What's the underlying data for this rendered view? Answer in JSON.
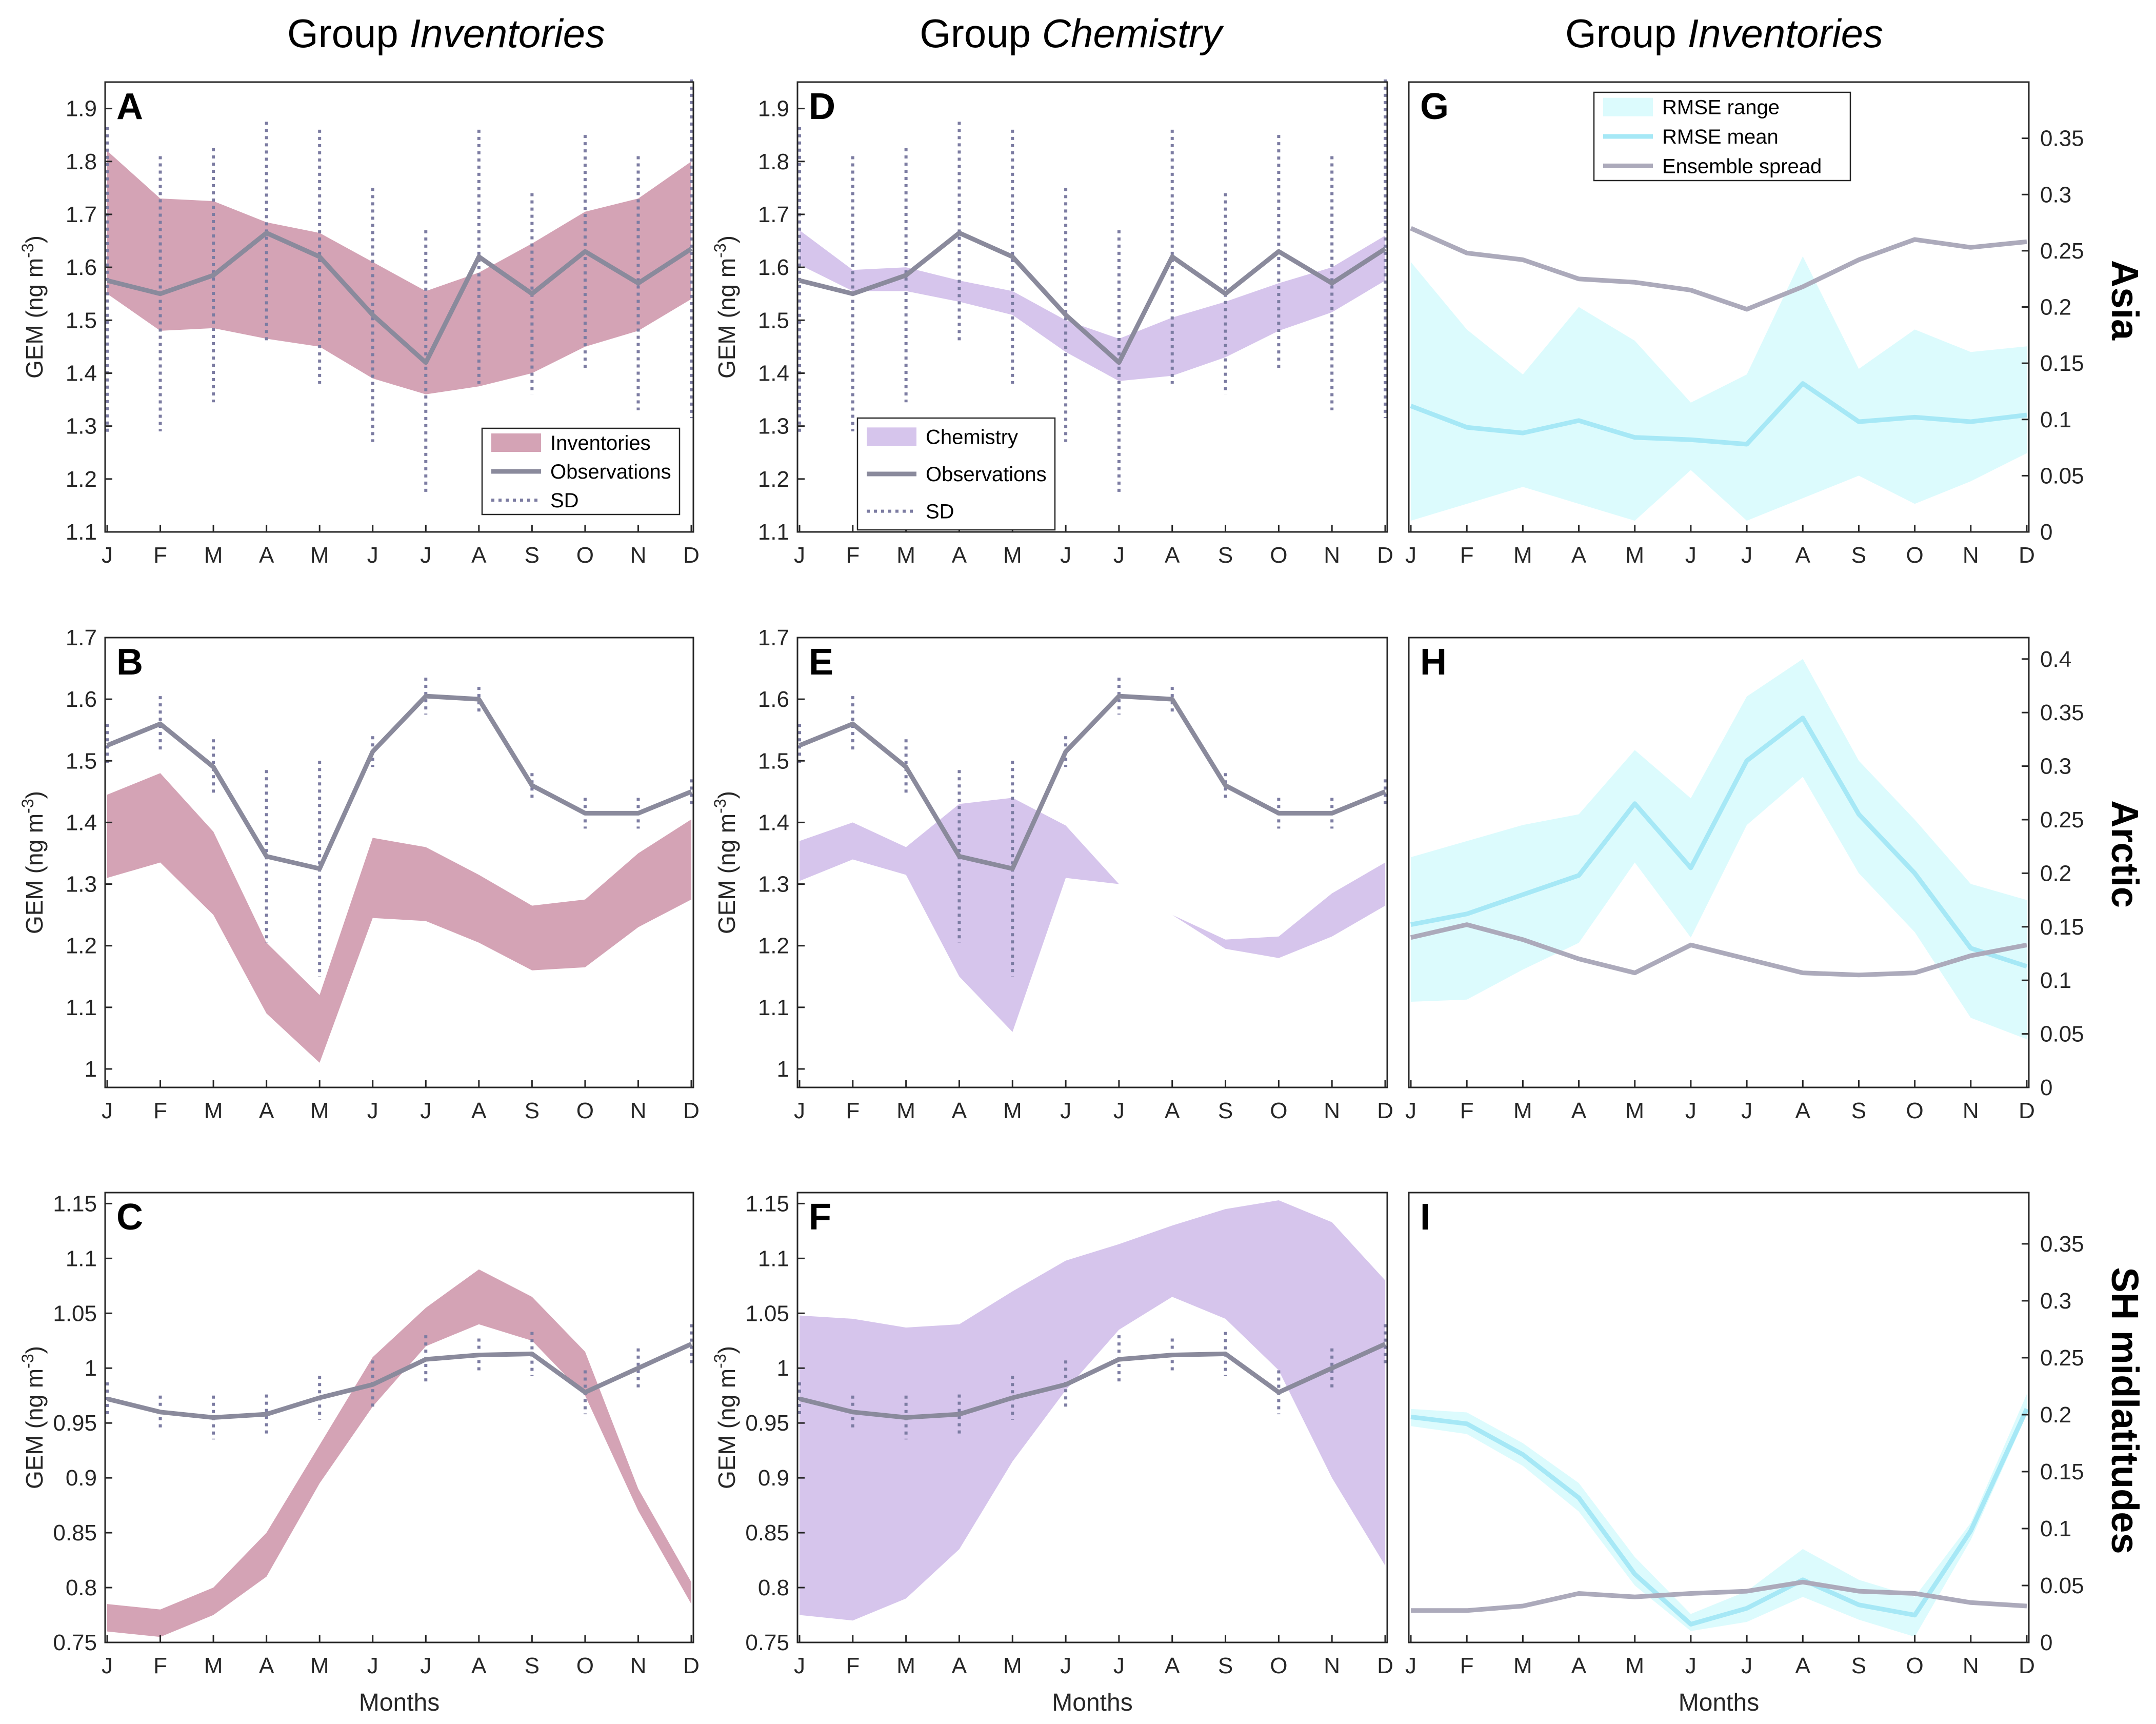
{
  "column_headers": [
    {
      "prefix": "Group ",
      "name": "Inventories"
    },
    {
      "prefix": "Group ",
      "name": "Chemistry"
    },
    {
      "prefix": "Group ",
      "name": "Inventories"
    }
  ],
  "row_labels": [
    "Asia",
    "Arctic",
    "SH midlatitudes"
  ],
  "months": [
    "J",
    "F",
    "M",
    "A",
    "M",
    "J",
    "J",
    "A",
    "S",
    "O",
    "N",
    "D"
  ],
  "xlabel": "Months",
  "ylabel": "GEM (ng m",
  "ylabel_sup": "-3",
  "ylabel_end": ")",
  "colors": {
    "inventories": "#d4a3b5",
    "chemistry": "#d6c5ec",
    "observations": "#8a8a9c",
    "sd": "#7c7ca2",
    "rmse_range": "#dcfbfd",
    "rmse_mean": "#a6e8f6",
    "ensemble_spread": "#acaabb"
  },
  "legends": {
    "inventories": [
      "Inventories",
      "Observations",
      "SD"
    ],
    "chemistry": [
      "Chemistry",
      "Observations",
      "SD"
    ],
    "rmse": [
      "RMSE range",
      "RMSE mean",
      "Ensemble spread"
    ]
  },
  "chart_data": [
    {
      "panel": "A",
      "type": "line",
      "region": "Asia",
      "group": "Inventories",
      "ylim": [
        1.1,
        1.95
      ],
      "yticks": [
        "1.1",
        "1.2",
        "1.3",
        "1.4",
        "1.5",
        "1.6",
        "1.7",
        "1.8",
        "1.9"
      ],
      "band": {
        "name": "Inventories",
        "upper": [
          1.82,
          1.73,
          1.725,
          1.685,
          1.665,
          1.61,
          1.555,
          1.59,
          1.645,
          1.705,
          1.73,
          1.8
        ],
        "lower": [
          1.55,
          1.48,
          1.485,
          1.465,
          1.45,
          1.39,
          1.36,
          1.375,
          1.4,
          1.45,
          1.48,
          1.54
        ]
      },
      "observations": [
        1.575,
        1.55,
        1.585,
        1.665,
        1.62,
        1.51,
        1.42,
        1.62,
        1.55,
        1.63,
        1.57,
        1.635
      ],
      "sd": [
        0.29,
        0.26,
        0.24,
        0.21,
        0.24,
        0.24,
        0.25,
        0.24,
        0.19,
        0.22,
        0.24,
        0.32
      ]
    },
    {
      "panel": "B",
      "type": "line",
      "region": "Arctic",
      "group": "Inventories",
      "ylim": [
        0.97,
        1.7
      ],
      "yticks": [
        "1",
        "1.1",
        "1.2",
        "1.3",
        "1.4",
        "1.5",
        "1.6",
        "1.7"
      ],
      "band": {
        "name": "Inventories",
        "upper": [
          1.445,
          1.48,
          1.385,
          1.205,
          1.12,
          1.375,
          1.36,
          1.315,
          1.265,
          1.275,
          1.35,
          1.405
        ],
        "lower": [
          1.31,
          1.335,
          1.25,
          1.09,
          1.01,
          1.245,
          1.24,
          1.205,
          1.16,
          1.165,
          1.23,
          1.275
        ]
      },
      "observations": [
        1.525,
        1.56,
        1.49,
        1.345,
        1.325,
        1.515,
        1.605,
        1.6,
        1.46,
        1.415,
        1.415,
        1.45
      ],
      "sd": [
        0.035,
        0.045,
        0.045,
        0.14,
        0.175,
        0.025,
        0.03,
        0.02,
        0.02,
        0.025,
        0.025,
        0.02
      ]
    },
    {
      "panel": "C",
      "type": "line",
      "region": "SH midlatitudes",
      "group": "Inventories",
      "ylim": [
        0.75,
        1.16
      ],
      "yticks": [
        "0.75",
        "0.8",
        "0.85",
        "0.9",
        "0.95",
        "1",
        "1.05",
        "1.1",
        "1.15"
      ],
      "band": {
        "name": "Inventories",
        "upper": [
          0.785,
          0.78,
          0.8,
          0.85,
          0.93,
          1.01,
          1.055,
          1.09,
          1.065,
          1.015,
          0.89,
          0.805
        ],
        "lower": [
          0.76,
          0.755,
          0.775,
          0.81,
          0.895,
          0.965,
          1.02,
          1.04,
          1.025,
          0.975,
          0.87,
          0.785
        ]
      },
      "observations": [
        0.972,
        0.96,
        0.955,
        0.958,
        0.973,
        0.985,
        1.008,
        1.012,
        1.013,
        0.978,
        1.0,
        1.022
      ],
      "sd": [
        0.015,
        0.015,
        0.02,
        0.018,
        0.02,
        0.022,
        0.022,
        0.015,
        0.02,
        0.02,
        0.018,
        0.018
      ]
    },
    {
      "panel": "D",
      "type": "line",
      "region": "Asia",
      "group": "Chemistry",
      "ylim": [
        1.1,
        1.95
      ],
      "yticks": [
        "1.1",
        "1.2",
        "1.3",
        "1.4",
        "1.5",
        "1.6",
        "1.7",
        "1.8",
        "1.9"
      ],
      "band": {
        "name": "Chemistry",
        "upper": [
          1.67,
          1.595,
          1.6,
          1.575,
          1.555,
          1.5,
          1.465,
          1.505,
          1.535,
          1.57,
          1.6,
          1.66
        ],
        "lower": [
          1.605,
          1.555,
          1.555,
          1.535,
          1.51,
          1.44,
          1.385,
          1.395,
          1.43,
          1.48,
          1.515,
          1.575
        ]
      },
      "observations": [
        1.575,
        1.55,
        1.585,
        1.665,
        1.62,
        1.51,
        1.42,
        1.62,
        1.55,
        1.63,
        1.57,
        1.635
      ],
      "sd": [
        0.29,
        0.26,
        0.24,
        0.21,
        0.24,
        0.24,
        0.25,
        0.24,
        0.19,
        0.22,
        0.24,
        0.32
      ]
    },
    {
      "panel": "E",
      "type": "line",
      "region": "Arctic",
      "group": "Chemistry",
      "ylim": [
        0.97,
        1.7
      ],
      "yticks": [
        "1",
        "1.1",
        "1.2",
        "1.3",
        "1.4",
        "1.5",
        "1.6",
        "1.7"
      ],
      "band": {
        "name": "Chemistry",
        "upper": [
          1.37,
          1.4,
          1.36,
          1.43,
          1.44,
          1.395,
          1.3,
          1.25,
          1.21,
          1.215,
          1.285,
          1.335
        ],
        "lower": [
          1.305,
          1.34,
          1.315,
          1.15,
          1.06,
          1.31,
          1.3,
          1.25,
          1.195,
          1.18,
          1.215,
          1.265
        ]
      },
      "observations": [
        1.525,
        1.56,
        1.49,
        1.345,
        1.325,
        1.515,
        1.605,
        1.6,
        1.46,
        1.415,
        1.415,
        1.45
      ],
      "sd": [
        0.035,
        0.045,
        0.045,
        0.14,
        0.175,
        0.025,
        0.03,
        0.02,
        0.02,
        0.025,
        0.025,
        0.02
      ]
    },
    {
      "panel": "F",
      "type": "line",
      "region": "SH midlatitudes",
      "group": "Chemistry",
      "ylim": [
        0.75,
        1.16
      ],
      "yticks": [
        "0.75",
        "0.8",
        "0.85",
        "0.9",
        "0.95",
        "1",
        "1.05",
        "1.1",
        "1.15"
      ],
      "band": {
        "name": "Chemistry",
        "upper": [
          1.048,
          1.045,
          1.037,
          1.04,
          1.07,
          1.098,
          1.113,
          1.13,
          1.145,
          1.153,
          1.133,
          1.08
        ],
        "lower": [
          0.775,
          0.77,
          0.79,
          0.835,
          0.915,
          0.98,
          1.035,
          1.065,
          1.045,
          0.998,
          0.9,
          0.82
        ]
      },
      "observations": [
        0.972,
        0.96,
        0.955,
        0.958,
        0.973,
        0.985,
        1.008,
        1.012,
        1.013,
        0.978,
        1.0,
        1.022
      ],
      "sd": [
        0.015,
        0.015,
        0.02,
        0.018,
        0.02,
        0.022,
        0.022,
        0.015,
        0.02,
        0.02,
        0.018,
        0.018
      ]
    },
    {
      "panel": "G",
      "type": "line",
      "region": "Asia",
      "group": "Inventories",
      "ylim": [
        0,
        0.4
      ],
      "yticks": [
        "0",
        "0.05",
        "0.1",
        "0.15",
        "0.2",
        "0.25",
        "0.3",
        "0.35"
      ],
      "rmse_range": {
        "upper": [
          0.24,
          0.18,
          0.14,
          0.2,
          0.17,
          0.115,
          0.14,
          0.245,
          0.145,
          0.18,
          0.16,
          0.165
        ],
        "lower": [
          0.01,
          0.025,
          0.04,
          0.025,
          0.01,
          0.055,
          0.01,
          0.03,
          0.05,
          0.025,
          0.045,
          0.07
        ]
      },
      "rmse_mean": [
        0.112,
        0.093,
        0.088,
        0.099,
        0.084,
        0.082,
        0.078,
        0.132,
        0.098,
        0.102,
        0.098,
        0.104
      ],
      "ensemble_spread": [
        0.27,
        0.248,
        0.242,
        0.225,
        0.222,
        0.215,
        0.198,
        0.218,
        0.242,
        0.26,
        0.253,
        0.258
      ]
    },
    {
      "panel": "H",
      "type": "line",
      "region": "Arctic",
      "group": "Inventories",
      "ylim": [
        0,
        0.42
      ],
      "yticks": [
        "0",
        "0.05",
        "0.1",
        "0.15",
        "0.2",
        "0.25",
        "0.3",
        "0.35",
        "0.4"
      ],
      "rmse_range": {
        "upper": [
          0.215,
          0.23,
          0.245,
          0.255,
          0.315,
          0.27,
          0.365,
          0.4,
          0.305,
          0.25,
          0.19,
          0.175
        ],
        "lower": [
          0.08,
          0.082,
          0.11,
          0.135,
          0.21,
          0.14,
          0.245,
          0.29,
          0.2,
          0.145,
          0.065,
          0.045
        ]
      },
      "rmse_mean": [
        0.152,
        0.162,
        0.18,
        0.198,
        0.265,
        0.205,
        0.305,
        0.345,
        0.255,
        0.2,
        0.13,
        0.113
      ],
      "ensemble_spread": [
        0.14,
        0.152,
        0.138,
        0.12,
        0.107,
        0.133,
        0.12,
        0.107,
        0.105,
        0.107,
        0.123,
        0.133
      ]
    },
    {
      "panel": "I",
      "type": "line",
      "region": "SH midlatitudes",
      "group": "Inventories",
      "ylim": [
        0,
        0.395
      ],
      "yticks": [
        "0",
        "0.05",
        "0.1",
        "0.15",
        "0.2",
        "0.25",
        "0.3",
        "0.35"
      ],
      "rmse_range": {
        "upper": [
          0.205,
          0.202,
          0.175,
          0.14,
          0.075,
          0.025,
          0.045,
          0.082,
          0.055,
          0.04,
          0.105,
          0.218
        ],
        "lower": [
          0.19,
          0.183,
          0.155,
          0.115,
          0.05,
          0.01,
          0.018,
          0.04,
          0.02,
          0.005,
          0.09,
          0.2
        ],
        "note": ""
      },
      "rmse_mean": [
        0.198,
        0.192,
        0.165,
        0.127,
        0.06,
        0.016,
        0.03,
        0.055,
        0.033,
        0.024,
        0.098,
        0.205
      ],
      "ensemble_spread": [
        0.028,
        0.028,
        0.032,
        0.043,
        0.04,
        0.043,
        0.045,
        0.053,
        0.045,
        0.043,
        0.035,
        0.032
      ]
    }
  ]
}
